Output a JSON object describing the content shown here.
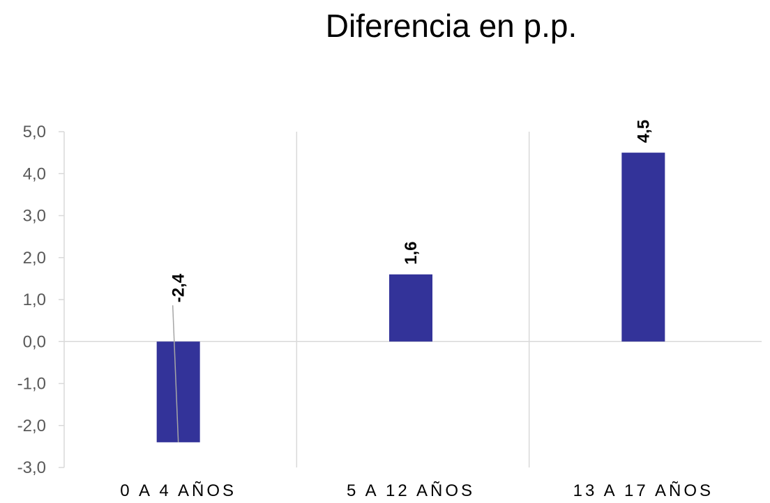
{
  "chart_data": {
    "type": "bar",
    "title": "Diferencia en p.p.",
    "categories": [
      "0  A  4  AÑOS",
      "5  A  12  AÑOS",
      "13  A  17  AÑOS"
    ],
    "values": [
      -2.4,
      1.6,
      4.5
    ],
    "data_labels": [
      "-2,4",
      "1,6",
      "4,5"
    ],
    "y_ticks": [
      5.0,
      4.0,
      3.0,
      2.0,
      1.0,
      0.0,
      -1.0,
      -2.0,
      -3.0
    ],
    "y_tick_labels": [
      "5,0",
      "4,0",
      "3,0",
      "2,0",
      "1,0",
      "0,0",
      "-1,0",
      "-2,0",
      "-3,0"
    ],
    "ylim": [
      -3,
      5
    ],
    "xlabel": "",
    "ylabel": "",
    "bar_color": "#333399",
    "legend": "none",
    "grid": "vertical category separators"
  }
}
